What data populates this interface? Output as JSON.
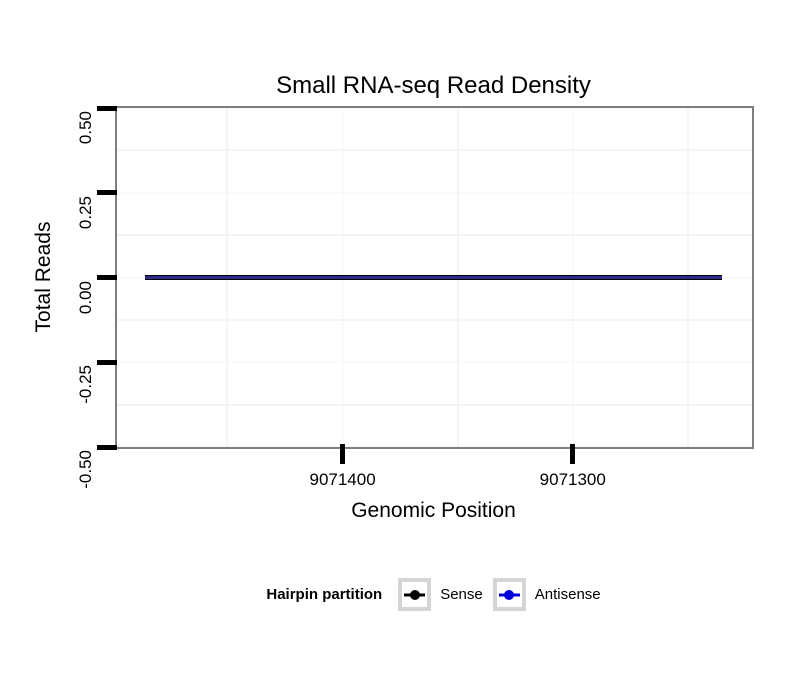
{
  "chart_data": {
    "type": "line",
    "title": "Small RNA-seq Read Density",
    "xlabel": "Genomic Position",
    "ylabel": "Total Reads",
    "x_axis": {
      "reversed": true,
      "ticks": [
        9071400,
        9071300
      ],
      "tick_labels": [
        "9071400",
        "9071300"
      ],
      "range": [
        9071498,
        9071223
      ]
    },
    "y_axis": {
      "ticks": [
        0.5,
        0.25,
        0,
        -0.25,
        -0.5
      ],
      "tick_labels": [
        "0.50",
        "0.25",
        "0.00",
        "-0.25",
        "-0.50"
      ],
      "range": [
        -0.5,
        0.5
      ]
    },
    "grid": {
      "minor_visible": true,
      "major_visible": false
    },
    "series": [
      {
        "name": "Sense",
        "legend_color": "#000000",
        "plot_color": "#000000",
        "y_value": 0,
        "x_extent": [
          9071486,
          9071235
        ]
      },
      {
        "name": "Antisense",
        "legend_color": "#0000dd",
        "plot_color": "#2b2b8a",
        "y_value": 0,
        "x_extent": [
          9071486,
          9071235
        ]
      }
    ],
    "legend": {
      "title": "Hairpin partition",
      "position": "bottom",
      "entries": [
        "Sense",
        "Antisense"
      ]
    }
  }
}
